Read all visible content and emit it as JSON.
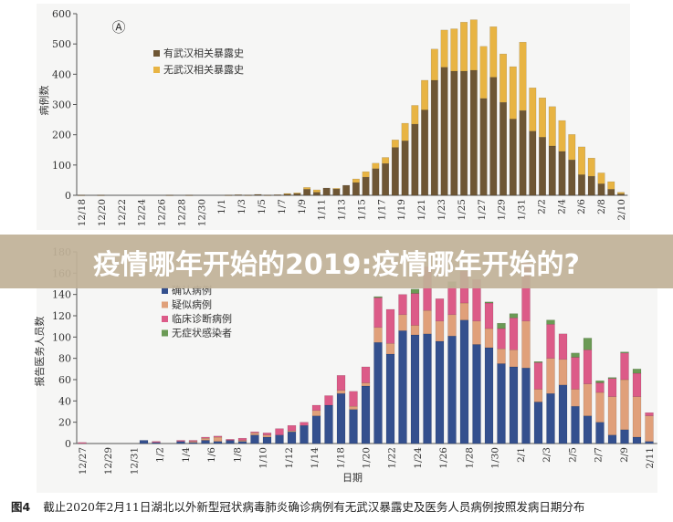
{
  "banner": {
    "title": "疫情哪年开始的2019:疫情哪年开始的?"
  },
  "caption": {
    "figure_label": "图4",
    "text": "截止2020年2月11日湖北以外新型冠状病毒肺炎确诊病例有无武汉暴露史及医务人员病例按照发病日期分布"
  },
  "chart_data": [
    {
      "type": "bar",
      "stacked": true,
      "panel_label": "Ⓐ",
      "title": "",
      "xlabel": "",
      "ylabel": "病例数",
      "ylim": [
        0,
        600
      ],
      "yticks": [
        0,
        100,
        200,
        300,
        400,
        500,
        600
      ],
      "legend_position": "top-left",
      "grid": false,
      "categories": [
        "12/18",
        "12/19",
        "12/20",
        "12/21",
        "12/22",
        "12/23",
        "12/24",
        "12/25",
        "12/26",
        "12/27",
        "12/28",
        "12/29",
        "12/30",
        "12/31",
        "1/1",
        "1/2",
        "1/3",
        "1/4",
        "1/5",
        "1/6",
        "1/7",
        "1/8",
        "1/9",
        "1/10",
        "1/11",
        "1/12",
        "1/13",
        "1/14",
        "1/15",
        "1/16",
        "1/17",
        "1/18",
        "1/19",
        "1/20",
        "1/21",
        "1/22",
        "1/23",
        "1/24",
        "1/25",
        "1/26",
        "1/27",
        "1/28",
        "1/29",
        "1/30",
        "1/31",
        "2/1",
        "2/2",
        "2/3",
        "2/4",
        "2/5",
        "2/6",
        "2/7",
        "2/8",
        "2/9",
        "2/10",
        "2/11"
      ],
      "tick_labels": [
        "12/18",
        "12/20",
        "12/22",
        "12/24",
        "12/26",
        "12/28",
        "12/30",
        "1/1",
        "1/3",
        "1/5",
        "1/7",
        "1/9",
        "1/11",
        "1/13",
        "1/15",
        "1/17",
        "1/19",
        "1/21",
        "1/23",
        "1/25",
        "1/27",
        "1/29",
        "1/31",
        "2/2",
        "2/4",
        "2/6",
        "2/8",
        "2/10"
      ],
      "series": [
        {
          "name": "有武汉相关暴露史",
          "color": "#6e5634",
          "values": [
            1,
            0,
            1,
            0,
            0,
            0,
            0,
            0,
            0,
            1,
            0,
            1,
            0,
            0,
            0,
            1,
            2,
            1,
            3,
            1,
            2,
            5,
            7,
            20,
            10,
            24,
            22,
            33,
            42,
            60,
            88,
            105,
            158,
            180,
            235,
            282,
            380,
            423,
            410,
            410,
            413,
            320,
            390,
            307,
            252,
            280,
            212,
            192,
            163,
            145,
            117,
            68,
            63,
            38,
            20,
            5
          ]
        },
        {
          "name": "无武汉相关暴露史",
          "color": "#e8b443",
          "values": [
            0,
            0,
            0,
            0,
            0,
            0,
            0,
            0,
            0,
            0,
            0,
            0,
            0,
            0,
            0,
            0,
            0,
            0,
            0,
            0,
            0,
            1,
            1,
            6,
            8,
            0,
            1,
            0,
            12,
            18,
            18,
            20,
            25,
            58,
            62,
            98,
            103,
            123,
            140,
            162,
            167,
            172,
            167,
            160,
            173,
            226,
            143,
            130,
            130,
            102,
            84,
            92,
            60,
            36,
            25,
            5
          ]
        }
      ]
    },
    {
      "type": "bar",
      "stacked": true,
      "title": "",
      "xlabel": "日期",
      "ylabel": "报告医务人员数",
      "ylim": [
        0,
        180
      ],
      "yticks": [
        0,
        20,
        40,
        60,
        80,
        100,
        120,
        140,
        160,
        180
      ],
      "legend_position": "top-left",
      "grid": false,
      "categories": [
        "12/27",
        "12/28",
        "12/29",
        "12/30",
        "12/31",
        "1/1",
        "1/2",
        "1/3",
        "1/4",
        "1/5",
        "1/6",
        "1/7",
        "1/8",
        "1/9",
        "1/10",
        "1/11",
        "1/12",
        "1/13",
        "1/14",
        "1/15",
        "1/16",
        "1/17",
        "1/18",
        "1/19",
        "1/20",
        "1/21",
        "1/22",
        "1/23",
        "1/24",
        "1/25",
        "1/26",
        "1/27",
        "1/28",
        "1/29",
        "1/30",
        "1/31",
        "2/1",
        "2/2",
        "2/3",
        "2/4",
        "2/5",
        "2/6",
        "2/7",
        "2/8",
        "2/9",
        "2/10",
        "2/11"
      ],
      "tick_labels": [
        "12/27",
        "12/29",
        "12/31",
        "1/2",
        "1/4",
        "1/6",
        "1/8",
        "1/10",
        "1/12",
        "1/14",
        "1/18",
        "1/20",
        "1/22",
        "1/24",
        "1/26",
        "1/28",
        "1/30",
        "2/1",
        "2/3",
        "2/5",
        "2/7",
        "2/9",
        "2/11"
      ],
      "series": [
        {
          "name": "确认病例",
          "color": "#34508e",
          "values": [
            0,
            0,
            0,
            0,
            0,
            3,
            1,
            0,
            2,
            1,
            3,
            2,
            3,
            2,
            8,
            6,
            8,
            11,
            17,
            26,
            36,
            47,
            32,
            54,
            95,
            84,
            106,
            102,
            103,
            96,
            101,
            116,
            93,
            90,
            75,
            72,
            71,
            39,
            47,
            55,
            35,
            26,
            20,
            8,
            13,
            6,
            2
          ]
        },
        {
          "name": "疑似病例",
          "color": "#e0a07a",
          "values": [
            0,
            0,
            0,
            0,
            0,
            0,
            0,
            0,
            0,
            1,
            2,
            4,
            0,
            1,
            2,
            2,
            0,
            1,
            0,
            5,
            0,
            3,
            3,
            3,
            14,
            10,
            15,
            9,
            22,
            19,
            20,
            16,
            22,
            18,
            14,
            16,
            44,
            12,
            33,
            24,
            16,
            30,
            28,
            36,
            47,
            38,
            24
          ]
        },
        {
          "name": "临床诊断病例",
          "color": "#dc5b88",
          "values": [
            1,
            0,
            0,
            0,
            0,
            0,
            1,
            0,
            1,
            1,
            1,
            1,
            1,
            2,
            1,
            2,
            6,
            5,
            3,
            5,
            9,
            14,
            14,
            15,
            28,
            32,
            19,
            30,
            41,
            21,
            26,
            30,
            39,
            24,
            19,
            30,
            55,
            25,
            32,
            24,
            30,
            32,
            9,
            17,
            25,
            22,
            3
          ]
        },
        {
          "name": "无症状感染者",
          "color": "#6b9a55",
          "values": [
            0,
            0,
            0,
            0,
            0,
            0,
            0,
            0,
            0,
            0,
            0,
            0,
            0,
            0,
            0,
            0,
            0,
            0,
            0,
            0,
            0,
            0,
            0,
            0,
            1,
            0,
            0,
            4,
            0,
            0,
            5,
            0,
            0,
            1,
            5,
            4,
            8,
            1,
            4,
            0,
            4,
            11,
            2,
            1,
            1,
            4,
            0
          ]
        }
      ]
    }
  ]
}
